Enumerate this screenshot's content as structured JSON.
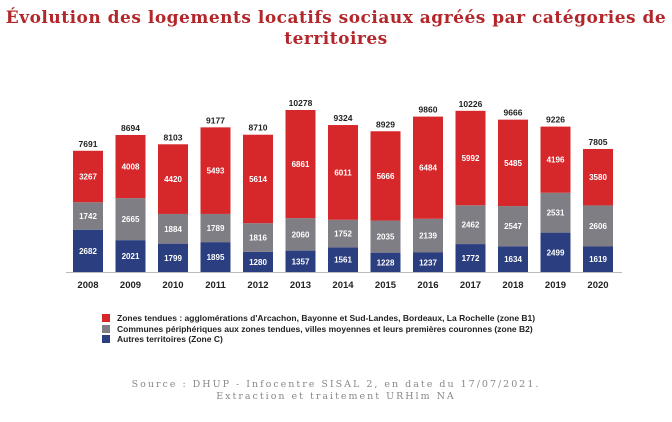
{
  "title": "Évolution des logements locatifs sociaux agréés par catégories de territoires",
  "source_line1": "Source : DHUP - Infocentre SISAL 2, en date du 17/07/2021.",
  "source_line2": "Extraction et traitement URHlm NA",
  "chart_data": {
    "type": "bar",
    "stacked": true,
    "categories": [
      "2008",
      "2009",
      "2010",
      "2011",
      "2012",
      "2013",
      "2014",
      "2015",
      "2016",
      "2017",
      "2018",
      "2019",
      "2020"
    ],
    "series": [
      {
        "name": "Autres territoires (Zone C)",
        "color": "#2b3f80",
        "values": [
          2682,
          2021,
          1799,
          1895,
          1280,
          1357,
          1561,
          1228,
          1237,
          1772,
          1634,
          2499,
          1619
        ]
      },
      {
        "name": "Communes périphériques aux zones tendues, villes moyennes et leurs premières couronnes (zone B2)",
        "color": "#7e7e84",
        "values": [
          1742,
          2665,
          1884,
          1789,
          1816,
          2060,
          1752,
          2035,
          2139,
          2462,
          2547,
          2531,
          2606
        ]
      },
      {
        "name": "Zones tendues : agglomérations d'Arcachon, Bayonne et Sud-Landes, Bordeaux, La Rochelle (zone B1)",
        "color": "#d6282b",
        "values": [
          3267,
          4008,
          4420,
          5493,
          5614,
          6861,
          6011,
          5666,
          6484,
          5992,
          5485,
          4196,
          3580
        ]
      }
    ],
    "totals": [
      7691,
      8694,
      8103,
      9177,
      8710,
      10278,
      9324,
      8929,
      9860,
      10226,
      9666,
      9226,
      7805
    ],
    "legend_order": [
      2,
      1,
      0
    ],
    "legend_position": "bottom-left",
    "grid": false
  }
}
